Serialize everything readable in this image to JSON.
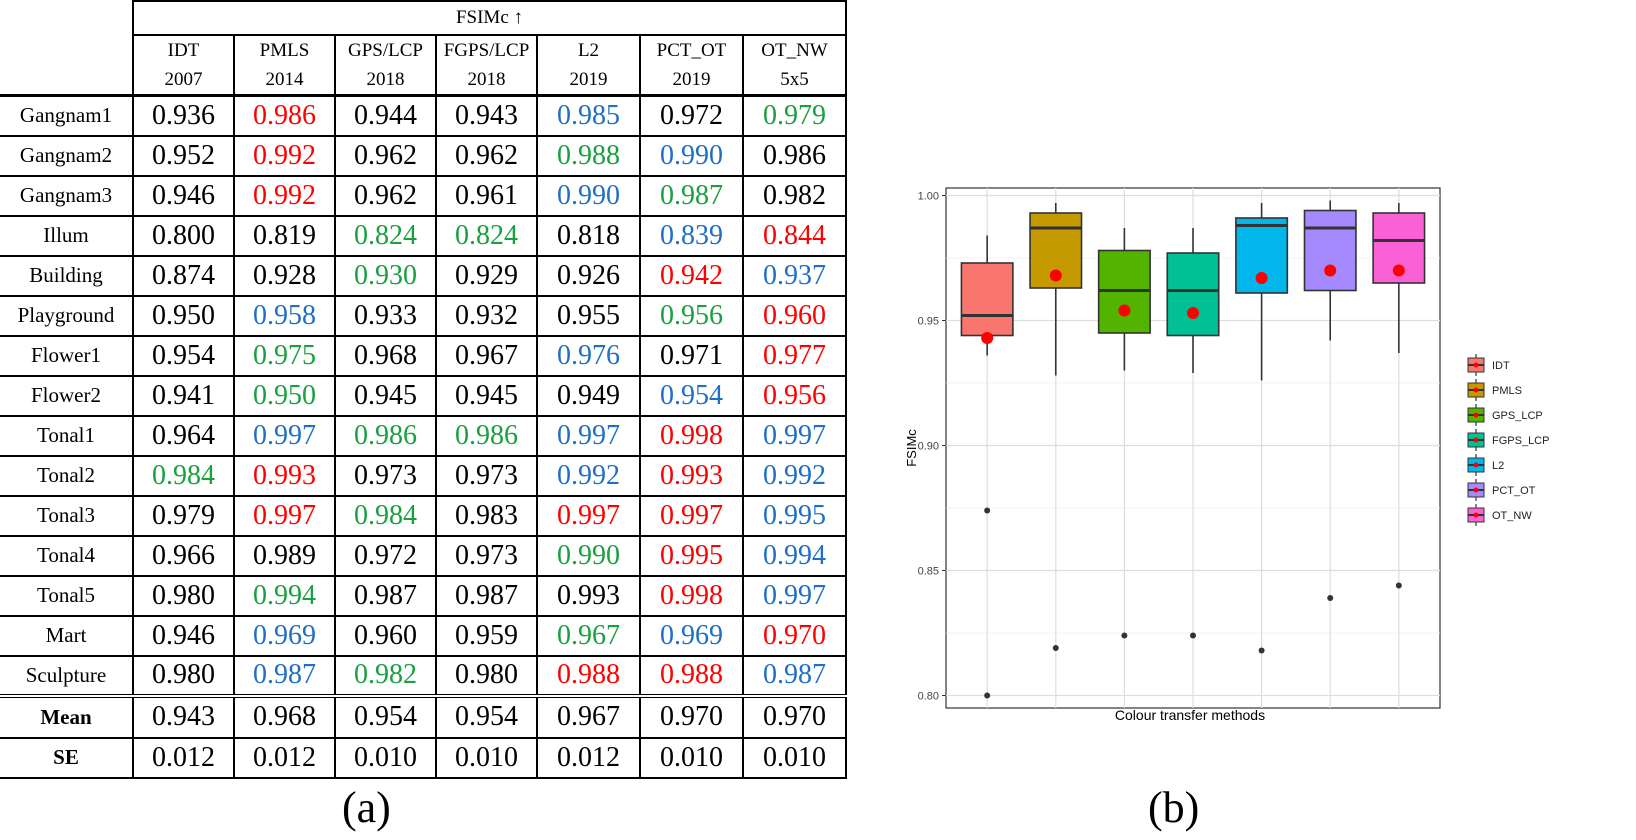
{
  "table": {
    "metric_header": "FSIMc",
    "metric_arrow": "↑",
    "methods": [
      {
        "name": "IDT",
        "year": "2007"
      },
      {
        "name": "PMLS",
        "year": "2014"
      },
      {
        "name": "GPS/LCP",
        "year": "2018"
      },
      {
        "name": "FGPS/LCP",
        "year": "2018"
      },
      {
        "name": "L2",
        "year": "2019"
      },
      {
        "name": "PCT_OT",
        "year": "2019"
      },
      {
        "name": "OT_NW",
        "year": "5x5"
      }
    ],
    "rows": [
      {
        "name": "Gangnam1",
        "values": [
          "0.936",
          "0.986",
          "0.944",
          "0.943",
          "0.985",
          "0.972",
          "0.979"
        ],
        "colors": [
          "black",
          "red",
          "black",
          "black",
          "blue",
          "black",
          "green"
        ]
      },
      {
        "name": "Gangnam2",
        "values": [
          "0.952",
          "0.992",
          "0.962",
          "0.962",
          "0.988",
          "0.990",
          "0.986"
        ],
        "colors": [
          "black",
          "red",
          "black",
          "black",
          "green",
          "blue",
          "black"
        ]
      },
      {
        "name": "Gangnam3",
        "values": [
          "0.946",
          "0.992",
          "0.962",
          "0.961",
          "0.990",
          "0.987",
          "0.982"
        ],
        "colors": [
          "black",
          "red",
          "black",
          "black",
          "blue",
          "green",
          "black"
        ]
      },
      {
        "name": "Illum",
        "values": [
          "0.800",
          "0.819",
          "0.824",
          "0.824",
          "0.818",
          "0.839",
          "0.844"
        ],
        "colors": [
          "black",
          "black",
          "green",
          "green",
          "black",
          "blue",
          "red"
        ]
      },
      {
        "name": "Building",
        "values": [
          "0.874",
          "0.928",
          "0.930",
          "0.929",
          "0.926",
          "0.942",
          "0.937"
        ],
        "colors": [
          "black",
          "black",
          "green",
          "black",
          "black",
          "red",
          "blue"
        ]
      },
      {
        "name": "Playground",
        "values": [
          "0.950",
          "0.958",
          "0.933",
          "0.932",
          "0.955",
          "0.956",
          "0.960"
        ],
        "colors": [
          "black",
          "blue",
          "black",
          "black",
          "black",
          "green",
          "red"
        ]
      },
      {
        "name": "Flower1",
        "values": [
          "0.954",
          "0.975",
          "0.968",
          "0.967",
          "0.976",
          "0.971",
          "0.977"
        ],
        "colors": [
          "black",
          "green",
          "black",
          "black",
          "blue",
          "black",
          "red"
        ]
      },
      {
        "name": "Flower2",
        "values": [
          "0.941",
          "0.950",
          "0.945",
          "0.945",
          "0.949",
          "0.954",
          "0.956"
        ],
        "colors": [
          "black",
          "green",
          "black",
          "black",
          "black",
          "blue",
          "red"
        ]
      },
      {
        "name": "Tonal1",
        "values": [
          "0.964",
          "0.997",
          "0.986",
          "0.986",
          "0.997",
          "0.998",
          "0.997"
        ],
        "colors": [
          "black",
          "blue",
          "green",
          "green",
          "blue",
          "red",
          "blue"
        ]
      },
      {
        "name": "Tonal2",
        "values": [
          "0.984",
          "0.993",
          "0.973",
          "0.973",
          "0.992",
          "0.993",
          "0.992"
        ],
        "colors": [
          "green",
          "red",
          "black",
          "black",
          "blue",
          "red",
          "blue"
        ]
      },
      {
        "name": "Tonal3",
        "values": [
          "0.979",
          "0.997",
          "0.984",
          "0.983",
          "0.997",
          "0.997",
          "0.995"
        ],
        "colors": [
          "black",
          "red",
          "green",
          "black",
          "red",
          "red",
          "blue"
        ]
      },
      {
        "name": "Tonal4",
        "values": [
          "0.966",
          "0.989",
          "0.972",
          "0.973",
          "0.990",
          "0.995",
          "0.994"
        ],
        "colors": [
          "black",
          "black",
          "black",
          "black",
          "green",
          "red",
          "blue"
        ]
      },
      {
        "name": "Tonal5",
        "values": [
          "0.980",
          "0.994",
          "0.987",
          "0.987",
          "0.993",
          "0.998",
          "0.997"
        ],
        "colors": [
          "black",
          "green",
          "black",
          "black",
          "black",
          "red",
          "blue"
        ]
      },
      {
        "name": "Mart",
        "values": [
          "0.946",
          "0.969",
          "0.960",
          "0.959",
          "0.967",
          "0.969",
          "0.970"
        ],
        "colors": [
          "black",
          "blue",
          "black",
          "black",
          "green",
          "blue",
          "red"
        ]
      },
      {
        "name": "Sculpture",
        "values": [
          "0.980",
          "0.987",
          "0.982",
          "0.980",
          "0.988",
          "0.988",
          "0.987"
        ],
        "colors": [
          "black",
          "blue",
          "green",
          "black",
          "red",
          "red",
          "blue"
        ]
      }
    ],
    "mean": {
      "name": "Mean",
      "values": [
        "0.943",
        "0.968",
        "0.954",
        "0.954",
        "0.967",
        "0.970",
        "0.970"
      ]
    },
    "se": {
      "name": "SE",
      "values": [
        "0.012",
        "0.012",
        "0.010",
        "0.010",
        "0.012",
        "0.010",
        "0.010"
      ]
    },
    "colors": {
      "red": "#ff0000",
      "blue": "#1f6fc5",
      "green": "#1aa040",
      "black": "#000000"
    }
  },
  "captions": {
    "a": "(a)",
    "b": "(b)"
  },
  "chart_data": {
    "type": "boxplot",
    "title": "",
    "xlabel": "Colour transfer methods",
    "ylabel": "FSIMc",
    "ylim": [
      0.795,
      1.003
    ],
    "yticks": [
      "0.80",
      "0.85",
      "0.90",
      "0.95",
      "1.00"
    ],
    "grid": true,
    "legend_position": "right",
    "series": [
      {
        "name": "IDT",
        "color": "#F8766D",
        "whisker_low": 0.936,
        "q1": 0.944,
        "median": 0.952,
        "q3": 0.973,
        "whisker_high": 0.984,
        "mean": 0.943,
        "outliers": [
          0.874,
          0.8
        ]
      },
      {
        "name": "PMLS",
        "color": "#C49A00",
        "whisker_low": 0.928,
        "q1": 0.963,
        "median": 0.987,
        "q3": 0.993,
        "whisker_high": 0.997,
        "mean": 0.968,
        "outliers": [
          0.819
        ]
      },
      {
        "name": "GPS_LCP",
        "color": "#53B400",
        "whisker_low": 0.93,
        "q1": 0.945,
        "median": 0.962,
        "q3": 0.978,
        "whisker_high": 0.987,
        "mean": 0.954,
        "outliers": [
          0.824
        ]
      },
      {
        "name": "FGPS_LCP",
        "color": "#00C094",
        "whisker_low": 0.929,
        "q1": 0.944,
        "median": 0.962,
        "q3": 0.977,
        "whisker_high": 0.987,
        "mean": 0.953,
        "outliers": [
          0.824
        ]
      },
      {
        "name": "L2",
        "color": "#00B6EB",
        "whisker_low": 0.926,
        "q1": 0.961,
        "median": 0.988,
        "q3": 0.991,
        "whisker_high": 0.997,
        "mean": 0.967,
        "outliers": [
          0.818
        ]
      },
      {
        "name": "PCT_OT",
        "color": "#A58AFF",
        "whisker_low": 0.942,
        "q1": 0.962,
        "median": 0.987,
        "q3": 0.994,
        "whisker_high": 0.998,
        "mean": 0.97,
        "outliers": [
          0.839
        ]
      },
      {
        "name": "OT_NW",
        "color": "#FB61D7",
        "whisker_low": 0.937,
        "q1": 0.965,
        "median": 0.982,
        "q3": 0.993,
        "whisker_high": 0.997,
        "mean": 0.97,
        "outliers": [
          0.844
        ]
      }
    ],
    "mean_marker_color": "#ff0000",
    "outlier_color": "#333333"
  }
}
